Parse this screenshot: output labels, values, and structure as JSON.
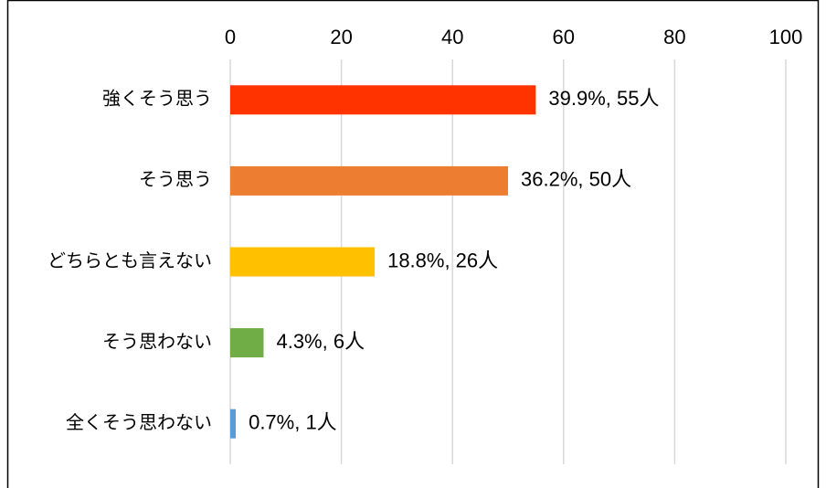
{
  "chart_data": {
    "type": "bar",
    "orientation": "horizontal",
    "categories": [
      "強くそう思う",
      "そう思う",
      "どちらとも言えない",
      "そう思わない",
      "全くそう思わない"
    ],
    "values": [
      55,
      50,
      26,
      6,
      1
    ],
    "value_labels": [
      "39.9%, 55人",
      "36.2%, 50人",
      "18.8%, 26人",
      "4.3%, 6人",
      "0.7%, 1人"
    ],
    "colors": [
      "#ff3300",
      "#ed7d31",
      "#ffc000",
      "#70ad47",
      "#5b9bd5"
    ],
    "xlim": [
      0,
      100
    ],
    "xticks": [
      0,
      20,
      40,
      60,
      80,
      100
    ],
    "grid": true
  }
}
